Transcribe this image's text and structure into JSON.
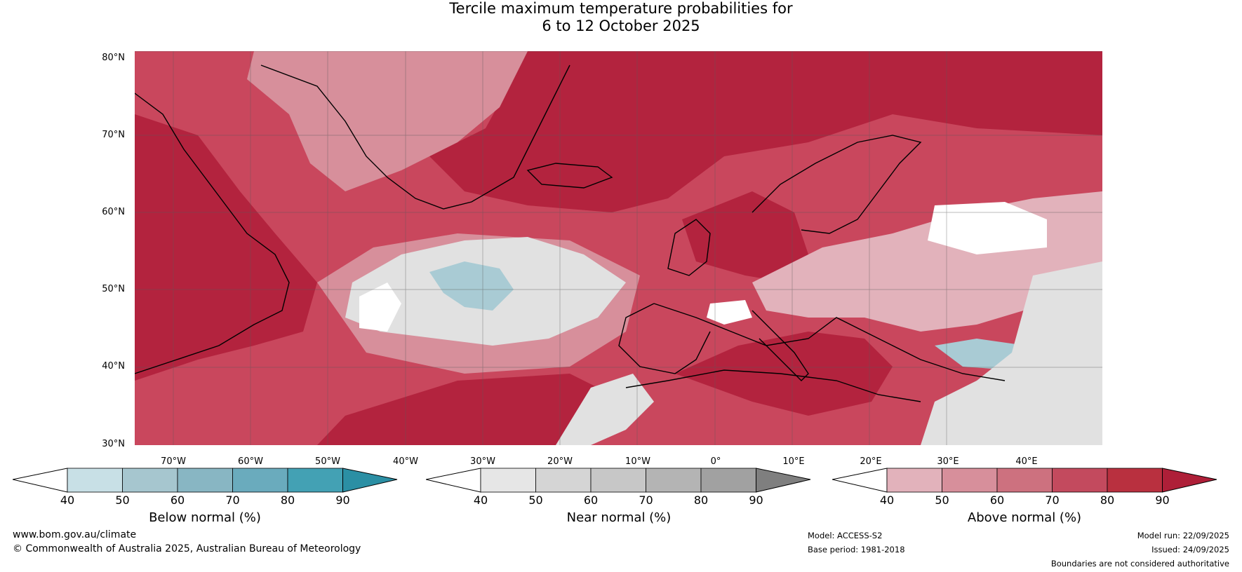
{
  "title": {
    "line1": "Tercile maximum temperature probabilities for",
    "line2": "6 to 12 October 2025"
  },
  "map": {
    "region": "North Atlantic and Europe",
    "latitude_labels": [
      "80°N",
      "70°N",
      "60°N",
      "50°N",
      "40°N",
      "30°N"
    ],
    "longitude_labels": [
      "70°W",
      "60°W",
      "50°W",
      "40°W",
      "30°W",
      "20°W",
      "10°W",
      "0°",
      "10°E",
      "20°E",
      "30°E",
      "40°E"
    ],
    "colors": {
      "above_dominant": "#c9475d",
      "above_strong": "#b3233e",
      "near_normal": "#e1e1e1",
      "below_normal": "#a9cbd4"
    }
  },
  "legends": [
    {
      "label": "Below normal (%)",
      "ticks": [
        "40",
        "50",
        "60",
        "70",
        "80",
        "90"
      ],
      "colors": [
        "#ffffff",
        "#c8e0e6",
        "#a6c6cf",
        "#88b6c3",
        "#6aabbd",
        "#43a1b4",
        "#2b8fa4"
      ]
    },
    {
      "label": "Near normal (%)",
      "ticks": [
        "40",
        "50",
        "60",
        "70",
        "80",
        "90"
      ],
      "colors": [
        "#ffffff",
        "#e6e6e6",
        "#d5d5d5",
        "#c7c7c7",
        "#b4b4b4",
        "#a1a1a1",
        "#7f7f7f"
      ]
    },
    {
      "label": "Above normal (%)",
      "ticks": [
        "40",
        "50",
        "60",
        "70",
        "80",
        "90"
      ],
      "colors": [
        "#ffffff",
        "#e2b2bb",
        "#d78f9b",
        "#cd717f",
        "#c34a5e",
        "#b9303f",
        "#ae1f38"
      ]
    }
  ],
  "footer": {
    "website": "www.bom.gov.au/climate",
    "copyright": "© Commonwealth of Australia 2025, Australian Bureau of Meteorology",
    "model": "Model: ACCESS-S2",
    "base_period": "Base period: 1981-2018",
    "model_run": "Model run: 22/09/2025",
    "issued": "Issued: 24/09/2025",
    "disclaimer": "Boundaries are not considered authoritative"
  }
}
